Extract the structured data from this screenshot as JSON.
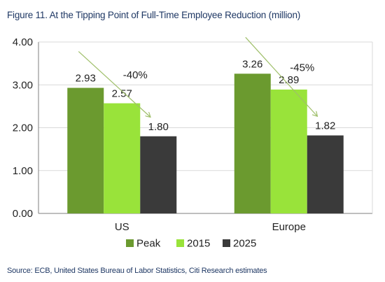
{
  "chart_data": {
    "type": "bar",
    "title": "Figure 11. At the Tipping Point of Full-Time Employee Reduction (million)",
    "source": "Source: ECB, United States Bureau of Labor Statistics, Citi Research estimates",
    "categories": [
      "US",
      "Europe"
    ],
    "series": [
      {
        "name": "Peak",
        "values": [
          2.93,
          3.26
        ],
        "color": "#6b9a2f"
      },
      {
        "name": "2015",
        "values": [
          2.57,
          2.89
        ],
        "color": "#99e33a"
      },
      {
        "name": "2025",
        "values": [
          1.8,
          1.82
        ],
        "color": "#3a3a3a"
      }
    ],
    "value_labels": [
      [
        "2.93",
        "2.57",
        "1.80"
      ],
      [
        "3.26",
        "2.89",
        "1.82"
      ]
    ],
    "annotations": [
      "-40%",
      "-45%"
    ],
    "ylim": [
      0,
      4
    ],
    "yticks": [
      "0.00",
      "1.00",
      "2.00",
      "3.00",
      "4.00"
    ],
    "grid": true,
    "legend_position": "bottom",
    "colors": {
      "axis": "#7f7f7f",
      "grid": "#d9d9d9",
      "text": "#222222",
      "arrow": "#9fbf6a"
    }
  }
}
